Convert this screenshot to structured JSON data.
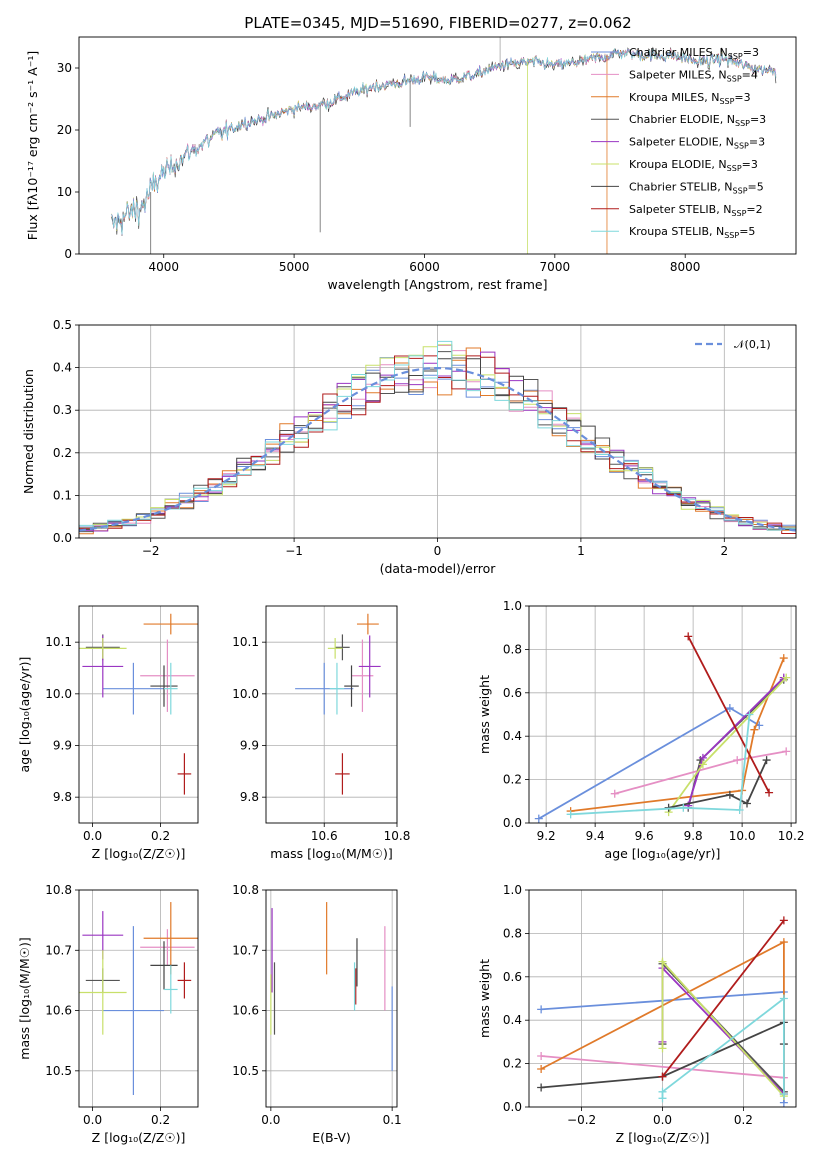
{
  "figure": {
    "title": "PLATE=0345, MJD=51690, FIBERID=0277, z=0.062"
  },
  "colors": {
    "Chabrier MILES": "#6a8fdc",
    "Salpeter MILES": "#e58fc4",
    "Kroupa MILES": "#e07a2a",
    "Chabrier ELODIE": "#555555",
    "Salpeter ELODIE": "#9a36c2",
    "Kroupa ELODIE": "#c8e06a",
    "Chabrier STELIB": "#444444",
    "Salpeter STELIB": "#b01c1c",
    "Kroupa STELIB": "#7fd8dc",
    "normal": "#6a8fdc"
  },
  "chart_data": [
    {
      "id": "spectrum",
      "type": "line",
      "title": "PLATE=0345, MJD=51690, FIBERID=0277, z=0.062",
      "xlabel": "wavelength [Angstrom, rest frame]",
      "ylabel": "Flux [fλ10⁻¹⁷ erg cm⁻² s⁻¹ A⁻¹]",
      "xlim": [
        3350,
        8850
      ],
      "ylim": [
        0,
        35
      ],
      "xticks": [
        4000,
        5000,
        6000,
        7000,
        8000
      ],
      "yticks": [
        0,
        10,
        20,
        30
      ],
      "grid": false,
      "legend_position": "upper-right",
      "legend": [
        {
          "model": "Chabrier MILES",
          "n": "3"
        },
        {
          "model": "Salpeter MILES",
          "n": "4"
        },
        {
          "model": "Kroupa MILES",
          "n": "3"
        },
        {
          "model": "Chabrier ELODIE",
          "n": "3"
        },
        {
          "model": "Salpeter ELODIE",
          "n": "3"
        },
        {
          "model": "Kroupa ELODIE",
          "n": "3"
        },
        {
          "model": "Chabrier STELIB",
          "n": "5"
        },
        {
          "model": "Salpeter STELIB",
          "n": "2"
        },
        {
          "model": "Kroupa STELIB",
          "n": "5"
        }
      ],
      "continuum": [
        [
          3600,
          4.5
        ],
        [
          3700,
          6
        ],
        [
          3850,
          8
        ],
        [
          3950,
          12
        ],
        [
          4050,
          14
        ],
        [
          4200,
          16.5
        ],
        [
          4400,
          19
        ],
        [
          4600,
          21
        ],
        [
          4800,
          22
        ],
        [
          5000,
          23.5
        ],
        [
          5200,
          24
        ],
        [
          5400,
          25.5
        ],
        [
          5600,
          27
        ],
        [
          5800,
          27.5
        ],
        [
          6000,
          28.5
        ],
        [
          6200,
          28
        ],
        [
          6400,
          29
        ],
        [
          6600,
          30.5
        ],
        [
          6800,
          31
        ],
        [
          7000,
          30.5
        ],
        [
          7200,
          31
        ],
        [
          7300,
          31.5
        ],
        [
          7500,
          32.5
        ],
        [
          7700,
          32
        ],
        [
          7900,
          32
        ],
        [
          8100,
          31
        ],
        [
          8300,
          31.5
        ],
        [
          8500,
          30
        ],
        [
          8700,
          29.5
        ]
      ],
      "spikes": [
        [
          5200,
          3.5
        ],
        [
          5890,
          20.5
        ],
        [
          6790,
          0
        ],
        [
          7400,
          0
        ],
        [
          3900,
          0
        ]
      ]
    },
    {
      "id": "residuals",
      "type": "histogram",
      "xlabel": "(data-model)/error",
      "ylabel": "Normed distribution",
      "xlim": [
        -2.5,
        2.5
      ],
      "ylim": [
        0,
        0.5
      ],
      "xticks": [
        -2,
        -1,
        0,
        1,
        2
      ],
      "yticks": [
        0.0,
        0.1,
        0.2,
        0.3,
        0.4,
        0.5
      ],
      "grid": true,
      "legend_position": "upper-right",
      "legend": [
        {
          "label": "𝒩(0,1)"
        }
      ],
      "bins": 50
    },
    {
      "id": "age_vs_Z",
      "type": "errorbar",
      "xlabel": "Z [log₁₀(Z/Z☉)]",
      "ylabel": "age [log₁₀(age/yr)]",
      "xlim": [
        -0.04,
        0.31
      ],
      "ylim": [
        9.75,
        10.17
      ],
      "xticks": [
        0.0,
        0.2
      ],
      "yticks": [
        9.8,
        9.9,
        10.0,
        10.1
      ],
      "grid": true,
      "points": [
        {
          "model": "Chabrier MILES",
          "x": 0.12,
          "xerr": 0.09,
          "y": 10.01,
          "yerr": 0.05
        },
        {
          "model": "Salpeter MILES",
          "x": 0.22,
          "xerr": 0.08,
          "y": 10.035,
          "yerr": 0.07
        },
        {
          "model": "Kroupa MILES",
          "x": 0.23,
          "xerr": 0.08,
          "y": 10.135,
          "yerr": 0.02
        },
        {
          "model": "Chabrier ELODIE",
          "x": 0.03,
          "xerr": 0.05,
          "y": 10.09,
          "yerr": 0.025
        },
        {
          "model": "Salpeter ELODIE",
          "x": 0.03,
          "xerr": 0.06,
          "y": 10.053,
          "yerr": 0.06
        },
        {
          "model": "Kroupa ELODIE",
          "x": 0.03,
          "xerr": 0.07,
          "y": 10.088,
          "yerr": 0.02
        },
        {
          "model": "Chabrier STELIB",
          "x": 0.21,
          "xerr": 0.04,
          "y": 10.015,
          "yerr": 0.04
        },
        {
          "model": "Salpeter STELIB",
          "x": 0.27,
          "xerr": 0.02,
          "y": 9.845,
          "yerr": 0.04
        },
        {
          "model": "Kroupa STELIB",
          "x": 0.23,
          "xerr": 0.02,
          "y": 10.01,
          "yerr": 0.05
        }
      ]
    },
    {
      "id": "age_vs_mass",
      "type": "errorbar",
      "xlabel": "mass [log₁₀(M/M☉)]",
      "ylabel": "",
      "xlim": [
        10.44,
        10.8
      ],
      "ylim": [
        9.75,
        10.17
      ],
      "xticks": [
        10.6,
        10.8
      ],
      "yticks": [
        9.8,
        9.9,
        10.0,
        10.1
      ],
      "grid": true,
      "points": [
        {
          "model": "Chabrier MILES",
          "x": 10.6,
          "xerr": 0.08,
          "y": 10.01,
          "yerr": 0.05
        },
        {
          "model": "Salpeter MILES",
          "x": 10.705,
          "xerr": 0.03,
          "y": 10.035,
          "yerr": 0.07
        },
        {
          "model": "Kroupa MILES",
          "x": 10.72,
          "xerr": 0.03,
          "y": 10.135,
          "yerr": 0.02
        },
        {
          "model": "Chabrier ELODIE",
          "x": 10.65,
          "xerr": 0.02,
          "y": 10.09,
          "yerr": 0.025
        },
        {
          "model": "Salpeter ELODIE",
          "x": 10.725,
          "xerr": 0.03,
          "y": 10.053,
          "yerr": 0.06
        },
        {
          "model": "Kroupa ELODIE",
          "x": 10.63,
          "xerr": 0.02,
          "y": 10.088,
          "yerr": 0.02
        },
        {
          "model": "Chabrier STELIB",
          "x": 10.675,
          "xerr": 0.02,
          "y": 10.015,
          "yerr": 0.04
        },
        {
          "model": "Salpeter STELIB",
          "x": 10.65,
          "xerr": 0.02,
          "y": 9.845,
          "yerr": 0.04
        },
        {
          "model": "Kroupa STELIB",
          "x": 10.635,
          "xerr": 0.02,
          "y": 10.01,
          "yerr": 0.05
        }
      ]
    },
    {
      "id": "weight_vs_age",
      "type": "line",
      "xlabel": "age [log₁₀(age/yr)]",
      "ylabel": "mass weight",
      "xlim": [
        9.13,
        10.22
      ],
      "ylim": [
        0,
        1
      ],
      "xticks": [
        9.2,
        9.4,
        9.6,
        9.8,
        10.0,
        10.2
      ],
      "yticks": [
        0.0,
        0.2,
        0.4,
        0.6,
        0.8,
        1.0
      ],
      "grid": true,
      "series": [
        {
          "model": "Chabrier MILES",
          "x": [
            9.17,
            9.95,
            10.07
          ],
          "y": [
            0.02,
            0.53,
            0.45
          ]
        },
        {
          "model": "Salpeter MILES",
          "x": [
            9.48,
            9.98,
            10.18
          ],
          "y": [
            0.135,
            0.29,
            0.33
          ]
        },
        {
          "model": "Kroupa MILES",
          "x": [
            9.3,
            10.0,
            10.05,
            10.17
          ],
          "y": [
            0.055,
            0.15,
            0.43,
            0.76
          ]
        },
        {
          "model": "Chabrier ELODIE",
          "x": [
            9.78,
            9.83,
            10.17
          ],
          "y": [
            0.07,
            0.29,
            0.66
          ]
        },
        {
          "model": "Salpeter ELODIE",
          "x": [
            9.78,
            9.84,
            10.17
          ],
          "y": [
            0.08,
            0.3,
            0.67
          ]
        },
        {
          "model": "Kroupa ELODIE",
          "x": [
            9.7,
            9.84,
            10.18
          ],
          "y": [
            0.05,
            0.27,
            0.67
          ]
        },
        {
          "model": "Chabrier STELIB",
          "x": [
            9.7,
            9.95,
            10.02,
            10.1
          ],
          "y": [
            0.07,
            0.13,
            0.09,
            0.29
          ]
        },
        {
          "model": "Salpeter STELIB",
          "x": [
            9.78,
            10.11
          ],
          "y": [
            0.86,
            0.14
          ]
        },
        {
          "model": "Kroupa STELIB",
          "x": [
            9.3,
            9.76,
            9.99,
            10.03
          ],
          "y": [
            0.04,
            0.07,
            0.06,
            0.5
          ]
        }
      ]
    },
    {
      "id": "mass_vs_Z",
      "type": "errorbar",
      "xlabel": "Z [log₁₀(Z/Z☉)]",
      "ylabel": "mass [log₁₀(M/M☉)]",
      "xlim": [
        -0.04,
        0.31
      ],
      "ylim": [
        10.44,
        10.8
      ],
      "xticks": [
        0.0,
        0.2
      ],
      "yticks": [
        10.5,
        10.6,
        10.7,
        10.8
      ],
      "grid": true,
      "points": [
        {
          "model": "Chabrier MILES",
          "x": 0.12,
          "xerr": 0.09,
          "y": 10.6,
          "yerr": 0.14
        },
        {
          "model": "Salpeter MILES",
          "x": 0.22,
          "xerr": 0.08,
          "y": 10.705,
          "yerr": 0.03
        },
        {
          "model": "Kroupa MILES",
          "x": 0.23,
          "xerr": 0.08,
          "y": 10.72,
          "yerr": 0.06
        },
        {
          "model": "Chabrier ELODIE",
          "x": 0.03,
          "xerr": 0.05,
          "y": 10.65,
          "yerr": 0.02
        },
        {
          "model": "Salpeter ELODIE",
          "x": 0.03,
          "xerr": 0.06,
          "y": 10.725,
          "yerr": 0.04
        },
        {
          "model": "Kroupa ELODIE",
          "x": 0.03,
          "xerr": 0.07,
          "y": 10.63,
          "yerr": 0.07
        },
        {
          "model": "Chabrier STELIB",
          "x": 0.21,
          "xerr": 0.04,
          "y": 10.675,
          "yerr": 0.04
        },
        {
          "model": "Salpeter STELIB",
          "x": 0.27,
          "xerr": 0.02,
          "y": 10.65,
          "yerr": 0.03
        },
        {
          "model": "Kroupa STELIB",
          "x": 0.23,
          "xerr": 0.02,
          "y": 10.635,
          "yerr": 0.04
        }
      ]
    },
    {
      "id": "mass_vs_ebv",
      "type": "errorbar",
      "xlabel": "E(B-V)",
      "ylabel": "",
      "xlim": [
        -0.004,
        0.104
      ],
      "ylim": [
        10.44,
        10.8
      ],
      "xticks": [
        0.0,
        0.1
      ],
      "yticks": [
        10.5,
        10.6,
        10.7,
        10.8
      ],
      "grid": true,
      "points": [
        {
          "model": "Chabrier MILES",
          "x": 0.1,
          "y": 10.57,
          "yerr": 0.07
        },
        {
          "model": "Salpeter MILES",
          "x": 0.094,
          "y": 10.67,
          "yerr": 0.07
        },
        {
          "model": "Kroupa MILES",
          "x": 0.046,
          "y": 10.72,
          "yerr": 0.06
        },
        {
          "model": "Chabrier ELODIE",
          "x": 0.003,
          "y": 10.62,
          "yerr": 0.06
        },
        {
          "model": "Salpeter ELODIE",
          "x": 0.001,
          "y": 10.7,
          "yerr": 0.07
        },
        {
          "model": "Kroupa ELODIE",
          "x": 0.0,
          "y": 10.61,
          "yerr": 0.05
        },
        {
          "model": "Chabrier STELIB",
          "x": 0.071,
          "y": 10.68,
          "yerr": 0.04
        },
        {
          "model": "Salpeter STELIB",
          "x": 0.07,
          "y": 10.64,
          "yerr": 0.03
        },
        {
          "model": "Kroupa STELIB",
          "x": 0.069,
          "y": 10.64,
          "yerr": 0.04
        }
      ]
    },
    {
      "id": "weight_vs_Z",
      "type": "line",
      "xlabel": "Z [log₁₀(Z/Z☉)]",
      "ylabel": "mass weight",
      "xlim": [
        -0.33,
        0.33
      ],
      "ylim": [
        0,
        1
      ],
      "xticks": [
        -0.2,
        0.0,
        0.2
      ],
      "yticks": [
        0.0,
        0.2,
        0.4,
        0.6,
        0.8,
        1.0
      ],
      "grid": true,
      "series": [
        {
          "model": "Chabrier MILES",
          "x": [
            -0.3,
            0.3,
            0.3
          ],
          "y": [
            0.45,
            0.53,
            0.02
          ]
        },
        {
          "model": "Salpeter MILES",
          "x": [
            -0.3,
            0.3
          ],
          "y": [
            0.235,
            0.135
          ]
        },
        {
          "model": "Kroupa MILES",
          "x": [
            -0.3,
            0.3,
            0.3
          ],
          "y": [
            0.175,
            0.76,
            0.06
          ]
        },
        {
          "model": "Chabrier ELODIE",
          "x": [
            0.0,
            0.0,
            0.3
          ],
          "y": [
            0.29,
            0.66,
            0.07
          ]
        },
        {
          "model": "Salpeter ELODIE",
          "x": [
            0.0,
            0.0,
            0.3
          ],
          "y": [
            0.3,
            0.64,
            0.06
          ]
        },
        {
          "model": "Kroupa ELODIE",
          "x": [
            0.0,
            0.0,
            0.3
          ],
          "y": [
            0.27,
            0.67,
            0.05
          ]
        },
        {
          "model": "Chabrier STELIB",
          "x": [
            -0.3,
            0.0,
            0.3,
            0.3
          ],
          "y": [
            0.09,
            0.14,
            0.39,
            0.29
          ]
        },
        {
          "model": "Salpeter STELIB",
          "x": [
            0.0,
            0.3
          ],
          "y": [
            0.14,
            0.86
          ]
        },
        {
          "model": "Kroupa STELIB",
          "x": [
            0.0,
            0.0,
            0.3,
            0.3
          ],
          "y": [
            0.04,
            0.07,
            0.5,
            0.06
          ]
        }
      ]
    }
  ]
}
